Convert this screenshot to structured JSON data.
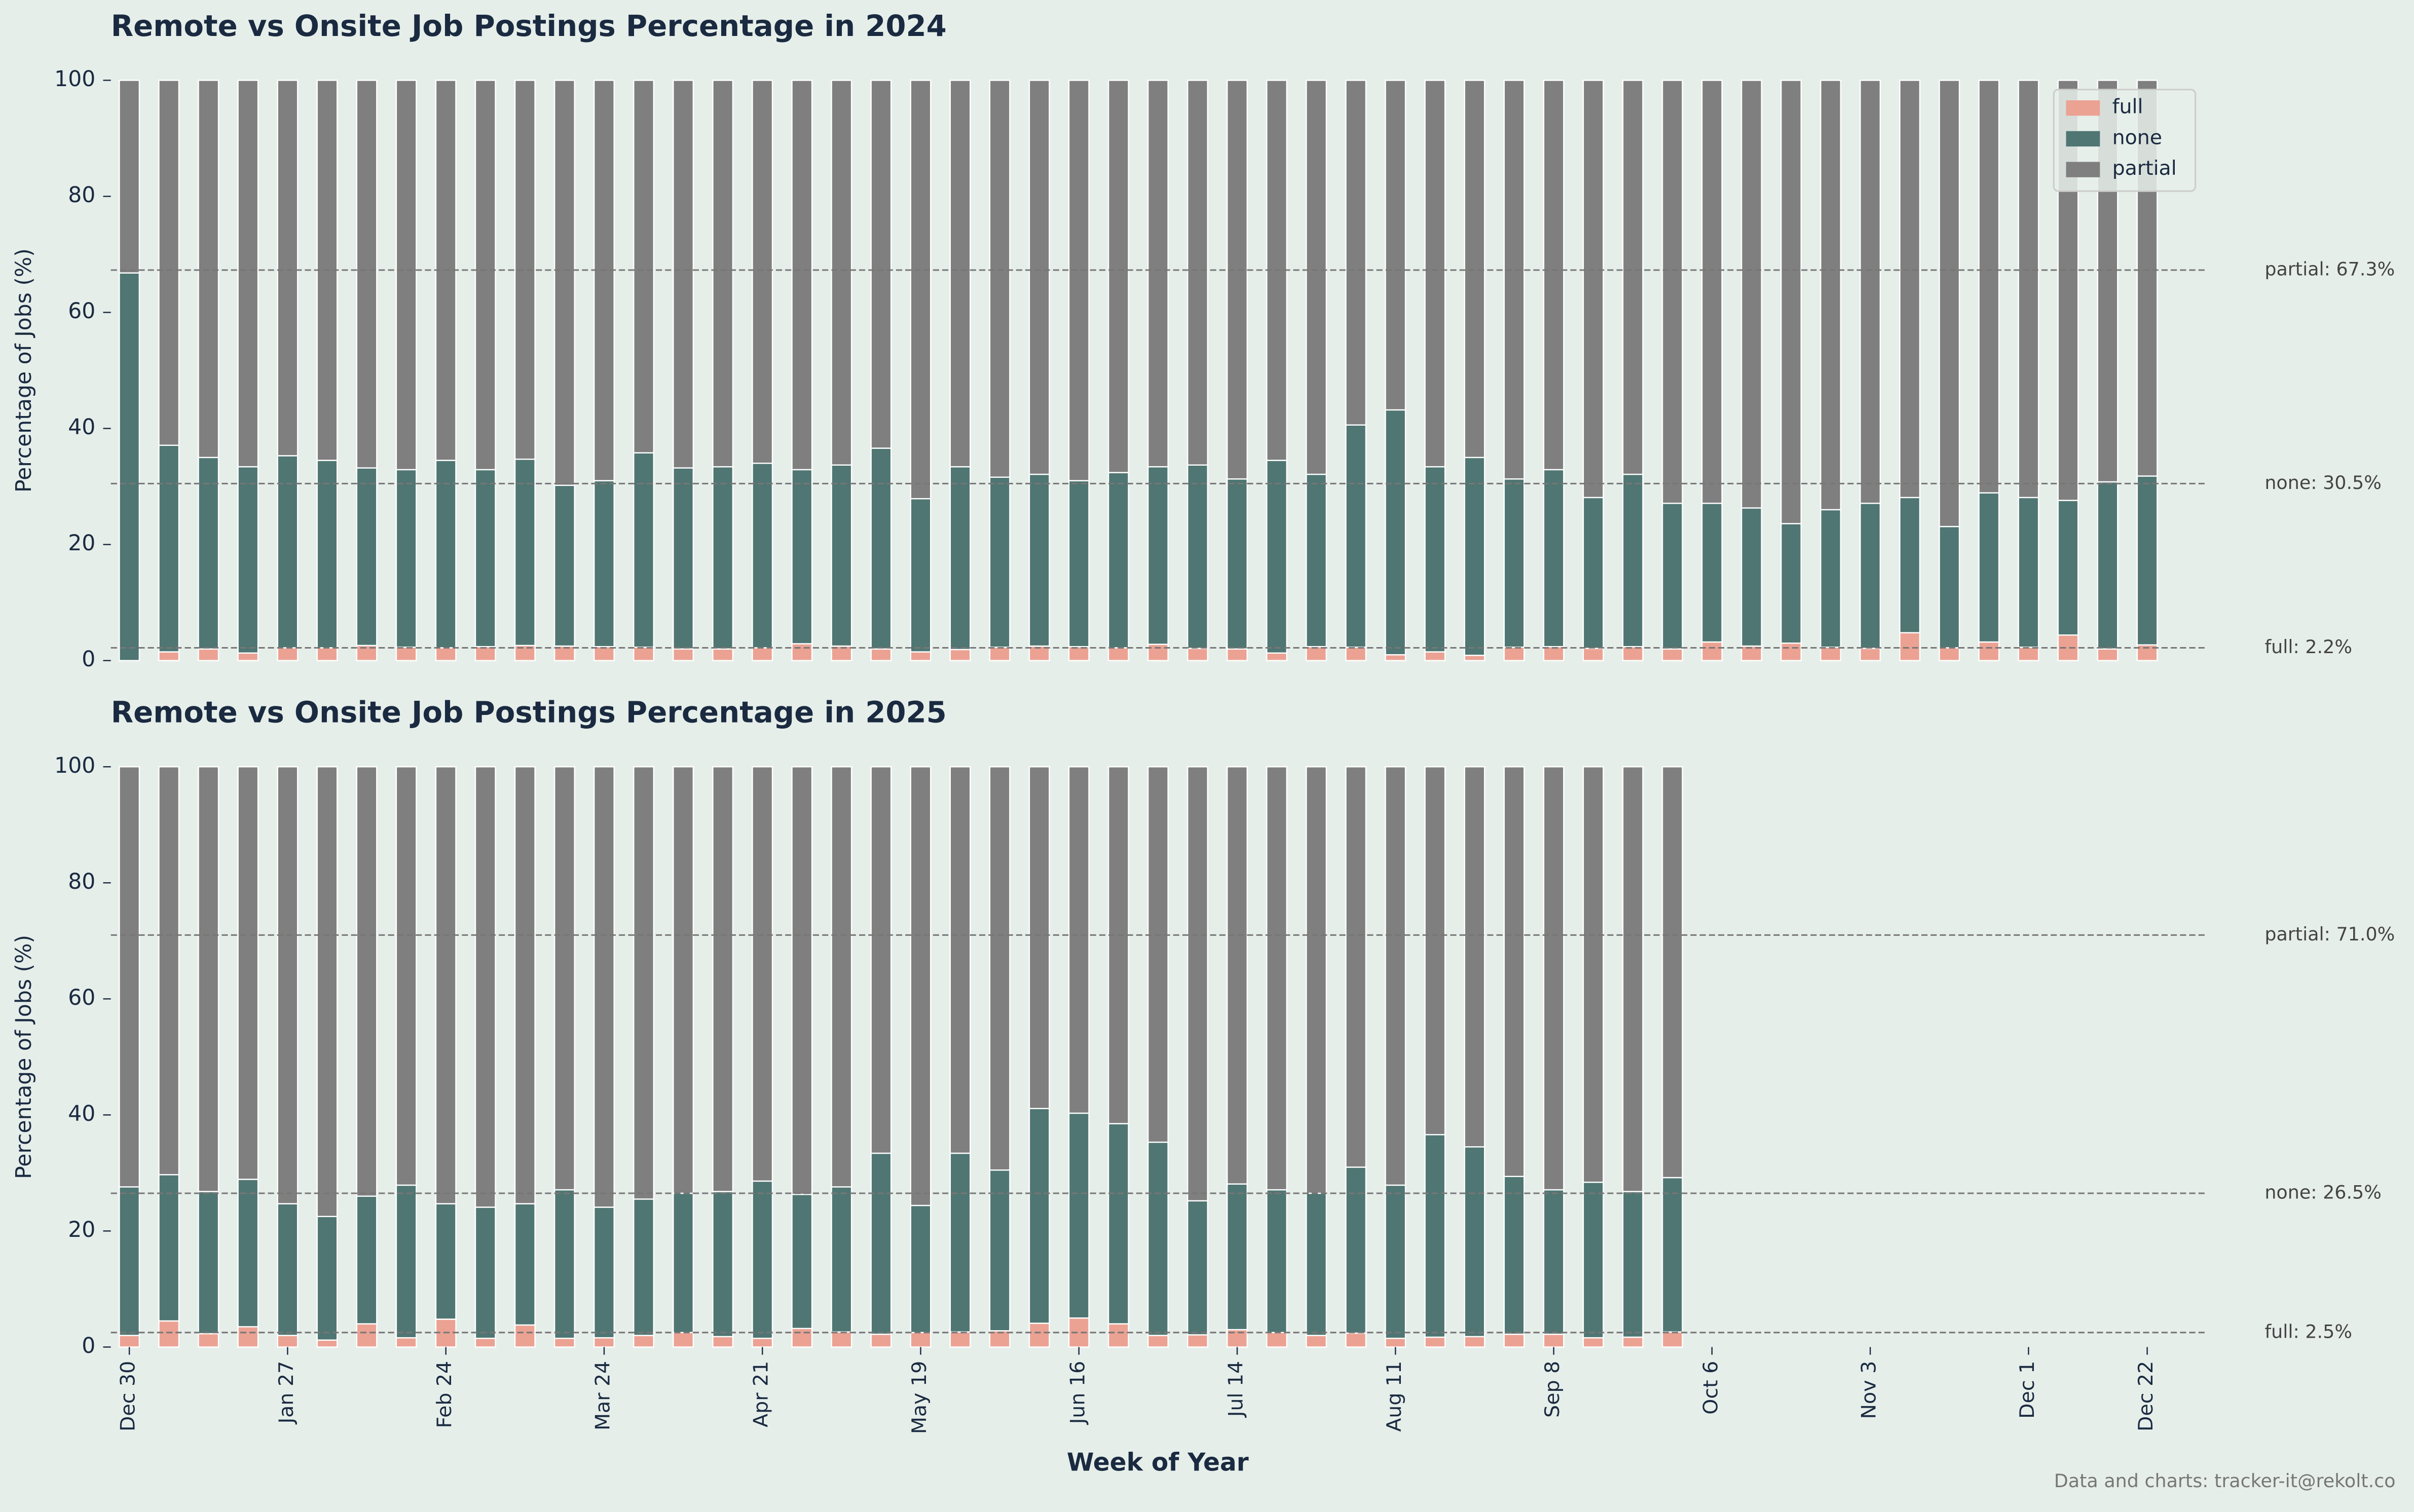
{
  "chart_data": [
    {
      "type": "bar",
      "stacked": true,
      "title": "Remote vs Onsite Job Postings Percentage in 2024",
      "y_label": "Percentage of Jobs (%)",
      "ylim": [
        0,
        100
      ],
      "yticks": [
        0,
        20,
        40,
        60,
        80,
        100
      ],
      "legend": "upper right",
      "series": [
        {
          "name": "full",
          "color": "#eba293",
          "values": [
            0,
            1.5,
            2.0,
            1.3,
            2.2,
            2.2,
            2.6,
            2.3,
            2.2,
            2.4,
            2.6,
            2.5,
            2.4,
            2.3,
            2.0,
            2.0,
            2.2,
            2.9,
            2.5,
            2.0,
            1.5,
            1.9,
            2.3,
            2.5,
            2.4,
            2.2,
            2.8,
            2.1,
            2.0,
            1.3,
            2.4,
            2.3,
            1.0,
            1.5,
            0.9,
            2.3,
            2.4,
            2.1,
            2.4,
            2.0,
            3.2,
            2.5,
            3.0,
            2.3,
            2.1,
            4.8,
            2.2,
            3.2,
            2.3,
            4.4,
            2.0,
            2.7
          ]
        },
        {
          "name": "none",
          "color": "#4f7672",
          "values": [
            66.8,
            35.6,
            33.0,
            32.1,
            33.1,
            32.3,
            30.6,
            30.6,
            32.3,
            30.5,
            32.1,
            27.7,
            28.6,
            33.5,
            31.2,
            31.4,
            31.8,
            30.0,
            31.2,
            34.6,
            26.4,
            31.5,
            29.3,
            29.6,
            28.6,
            30.2,
            30.6,
            31.6,
            29.3,
            33.2,
            29.7,
            38.3,
            42.2,
            31.9,
            34.1,
            29.0,
            30.5,
            26.0,
            29.7,
            25.1,
            23.9,
            23.8,
            20.6,
            23.7,
            25.0,
            23.3,
            20.9,
            25.7,
            25.8,
            23.2,
            28.8,
            29.1
          ]
        },
        {
          "name": "partial",
          "color": "#7f7f7f",
          "values": [
            33.2,
            62.9,
            65.0,
            66.6,
            64.7,
            65.5,
            66.8,
            67.1,
            65.5,
            67.1,
            65.3,
            69.8,
            69.0,
            64.2,
            66.8,
            66.6,
            66.0,
            67.1,
            66.3,
            63.4,
            72.1,
            66.6,
            68.4,
            67.9,
            69.0,
            67.6,
            66.6,
            66.3,
            68.7,
            65.5,
            67.9,
            59.4,
            56.8,
            66.6,
            65.0,
            68.7,
            67.1,
            71.9,
            67.9,
            72.9,
            72.9,
            73.7,
            76.4,
            74.0,
            72.9,
            71.9,
            76.9,
            71.1,
            71.9,
            72.4,
            69.2,
            68.2
          ]
        }
      ],
      "reference_lines": [
        {
          "value": 67.3,
          "label": "partial: 67.3%"
        },
        {
          "value": 30.5,
          "label": "none: 30.5%"
        },
        {
          "value": 2.2,
          "label": "full: 2.2%"
        }
      ]
    },
    {
      "type": "bar",
      "stacked": true,
      "title": "Remote vs Onsite Job Postings Percentage in 2025",
      "y_label": "Percentage of Jobs (%)",
      "x_label": "Week of Year",
      "ylim": [
        0,
        100
      ],
      "yticks": [
        0,
        20,
        40,
        60,
        80,
        100
      ],
      "categories": [
        "Dec 30",
        null,
        null,
        null,
        "Jan 27",
        null,
        null,
        null,
        "Feb 24",
        null,
        null,
        null,
        "Mar 24",
        null,
        null,
        null,
        "Apr 21",
        null,
        null,
        null,
        "May 19",
        null,
        null,
        null,
        "Jun 16",
        null,
        null,
        null,
        "Jul 14",
        null,
        null,
        null,
        "Aug 11",
        null,
        null,
        null,
        "Sep 8",
        null,
        null,
        null,
        "Oct 6",
        null,
        null,
        null,
        "Nov 3",
        null,
        null,
        null,
        "Dec 1",
        null,
        null,
        "Dec 22"
      ],
      "series": [
        {
          "name": "full",
          "color": "#eba293",
          "values": [
            2.0,
            4.5,
            2.3,
            3.5,
            2.0,
            1.2,
            4.0,
            1.6,
            4.8,
            1.5,
            3.8,
            1.5,
            1.6,
            2.0,
            2.5,
            1.8,
            1.5,
            3.2,
            2.6,
            2.2,
            2.5,
            2.6,
            2.8,
            4.1,
            5.0,
            4.0,
            2.0,
            2.1,
            3.0,
            2.5,
            2.0,
            2.4,
            1.5,
            1.7,
            1.8,
            2.2,
            2.2,
            1.6,
            1.7,
            2.6,
            null,
            null,
            null,
            null,
            null,
            null,
            null,
            null,
            null,
            null,
            null,
            null
          ]
        },
        {
          "name": "none",
          "color": "#4f7672",
          "values": [
            25.6,
            25.2,
            24.5,
            25.4,
            22.7,
            21.3,
            22.0,
            26.3,
            19.9,
            22.6,
            20.9,
            25.6,
            22.5,
            23.5,
            24.0,
            25.0,
            27.1,
            23.1,
            25.0,
            31.2,
            21.9,
            30.8,
            27.7,
            37.0,
            35.3,
            34.5,
            33.3,
            23.1,
            25.1,
            24.6,
            24.5,
            28.6,
            26.4,
            34.9,
            32.7,
            27.2,
            24.9,
            26.8,
            25.1,
            26.6,
            null,
            null,
            null,
            null,
            null,
            null,
            null,
            null,
            null,
            null,
            null,
            null
          ]
        },
        {
          "name": "partial",
          "color": "#7f7f7f",
          "values": [
            72.4,
            70.3,
            73.2,
            71.1,
            75.3,
            77.5,
            74.0,
            72.1,
            75.3,
            75.9,
            75.3,
            72.9,
            75.9,
            74.5,
            73.5,
            73.2,
            71.4,
            73.7,
            72.4,
            66.6,
            75.6,
            66.6,
            69.5,
            58.9,
            59.7,
            61.5,
            64.7,
            74.8,
            71.9,
            72.9,
            73.5,
            69.0,
            72.1,
            63.4,
            65.5,
            70.6,
            72.9,
            71.6,
            73.2,
            70.8,
            null,
            null,
            null,
            null,
            null,
            null,
            null,
            null,
            null,
            null,
            null,
            null
          ]
        }
      ],
      "reference_lines": [
        {
          "value": 71.0,
          "label": "partial: 71.0%"
        },
        {
          "value": 26.5,
          "label": "none: 26.5%"
        },
        {
          "value": 2.5,
          "label": "full: 2.5%"
        }
      ]
    }
  ],
  "footer": "Data and charts: tracker-it@rekolt.co"
}
